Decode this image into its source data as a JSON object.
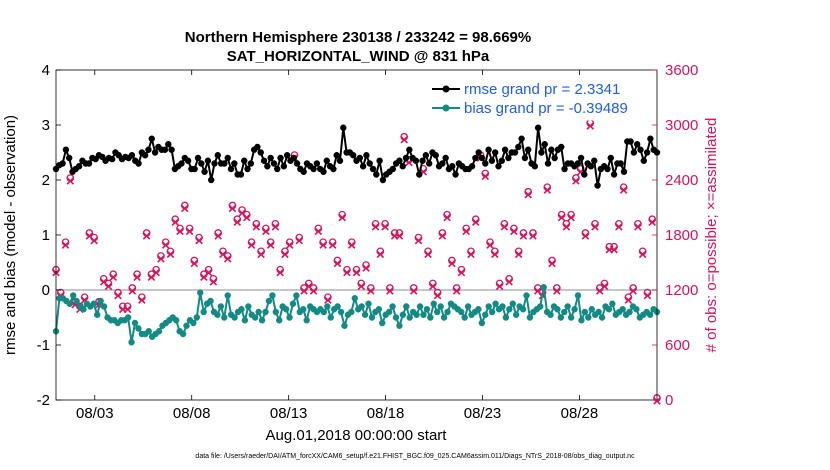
{
  "chart_data": {
    "type": "line",
    "title": "Northern Hemisphere 230138 / 233242 = 98.669%",
    "subtitle": "SAT_HORIZONTAL_WIND @ 831 hPa",
    "xlabel": "Aug.01,2018 00:00:00 start",
    "ylabel_left": "rmse and bias (model - observation)",
    "ylabel_right": "# of obs: o=possible; ×=assimilated",
    "x_ticks": [
      "08/03",
      "08/08",
      "08/13",
      "08/18",
      "08/23",
      "08/28"
    ],
    "x_tick_days": [
      3,
      8,
      13,
      18,
      23,
      28
    ],
    "xlim_days": [
      1.0,
      32.0
    ],
    "ylim_left": [
      -2,
      4
    ],
    "yticks_left": [
      "-2",
      "-1",
      "0",
      "1",
      "2",
      "3",
      "4"
    ],
    "ylim_right": [
      0,
      3600
    ],
    "yticks_right": [
      "0",
      "600",
      "1200",
      "1800",
      "2400",
      "3000",
      "3600"
    ],
    "colors": {
      "rmse": "#000000",
      "bias": "#138a84",
      "obs": "#d6145c",
      "zero_line": "#b4b4b4",
      "legend_text": "#1f5fe0"
    },
    "legend_position": "top-right",
    "series": [
      {
        "name": "rmse grand pr = 2.3341",
        "color": "#000000",
        "values": [
          2.2,
          2.27,
          2.3,
          2.55,
          2.4,
          2.15,
          2.2,
          2.25,
          2.35,
          2.3,
          2.3,
          2.4,
          2.38,
          2.45,
          2.42,
          2.35,
          2.4,
          2.38,
          2.5,
          2.45,
          2.38,
          2.42,
          2.4,
          2.45,
          2.35,
          2.3,
          2.5,
          2.45,
          2.55,
          2.75,
          2.5,
          2.6,
          2.55,
          2.55,
          2.65,
          2.55,
          2.2,
          2.25,
          2.3,
          2.4,
          2.35,
          2.2,
          2.2,
          2.4,
          2.3,
          2.15,
          2.35,
          2.0,
          2.3,
          2.45,
          2.3,
          2.3,
          2.4,
          2.2,
          2.3,
          2.1,
          2.1,
          2.35,
          2.2,
          2.3,
          2.55,
          2.6,
          2.5,
          2.35,
          2.25,
          2.4,
          2.3,
          2.2,
          2.4,
          2.25,
          2.45,
          2.35,
          2.4,
          2.3,
          2.2,
          2.15,
          2.3,
          2.25,
          2.2,
          2.3,
          2.2,
          2.15,
          2.35,
          2.25,
          2.2,
          2.45,
          2.35,
          2.95,
          2.5,
          2.5,
          2.45,
          2.35,
          2.4,
          2.25,
          2.45,
          2.3,
          2.2,
          2.1,
          2.35,
          2.0,
          2.1,
          2.15,
          2.2,
          2.3,
          2.35,
          2.25,
          2.4,
          2.55,
          2.4,
          2.35,
          2.1,
          2.35,
          2.45,
          2.3,
          2.5,
          2.45,
          2.25,
          2.3,
          2.4,
          2.2,
          2.25,
          2.1,
          2.3,
          2.25,
          2.2,
          2.2,
          2.25,
          2.4,
          2.5,
          2.4,
          2.3,
          2.55,
          2.35,
          2.5,
          2.25,
          2.35,
          2.55,
          2.4,
          2.5,
          2.5,
          2.6,
          2.75,
          2.4,
          2.55,
          2.3,
          2.25,
          2.95,
          2.5,
          2.65,
          2.3,
          2.55,
          2.4,
          2.55,
          2.6,
          2.2,
          2.3,
          2.3,
          2.25,
          2.3,
          2.4,
          2.1,
          2.3,
          2.25,
          2.35,
          1.9,
          2.2,
          2.25,
          2.2,
          2.4,
          2.1,
          2.3,
          2.3,
          2.15,
          2.7,
          2.7,
          2.5,
          2.65,
          2.55,
          2.35,
          2.5,
          2.75,
          2.55,
          2.5
        ]
      },
      {
        "name": "bias grand pr = -0.39489",
        "color": "#138a84",
        "values": [
          -0.75,
          -0.15,
          -0.15,
          -0.2,
          -0.25,
          -0.1,
          -0.2,
          -0.3,
          -0.35,
          -0.25,
          -0.3,
          -0.25,
          -0.45,
          -0.2,
          -0.3,
          -0.5,
          -0.55,
          -0.55,
          -0.6,
          -0.55,
          -0.55,
          -0.5,
          -0.95,
          -0.6,
          -0.7,
          -0.8,
          -0.8,
          -0.75,
          -0.85,
          -0.8,
          -0.75,
          -0.65,
          -0.6,
          -0.55,
          -0.5,
          -0.55,
          -0.75,
          -0.8,
          -0.65,
          -0.55,
          -0.6,
          -0.5,
          -0.05,
          -0.4,
          -0.25,
          -0.2,
          -0.4,
          -0.45,
          -0.3,
          -0.5,
          -0.1,
          -0.45,
          -0.5,
          -0.4,
          -0.35,
          -0.55,
          -0.3,
          -0.45,
          -0.5,
          -0.4,
          -0.55,
          -0.4,
          -0.2,
          -0.1,
          -0.4,
          -0.55,
          -0.3,
          -0.35,
          -0.5,
          -0.25,
          -0.1,
          -0.4,
          -0.35,
          -0.55,
          -0.3,
          -0.35,
          -0.4,
          -0.35,
          -0.4,
          -0.3,
          -0.5,
          -0.35,
          -0.3,
          -0.4,
          -0.65,
          -0.45,
          -0.4,
          -0.15,
          -0.35,
          -0.3,
          -0.45,
          -0.25,
          -0.5,
          -0.4,
          -0.35,
          -0.6,
          -0.45,
          -0.4,
          -0.3,
          -0.5,
          -0.65,
          -0.45,
          -0.3,
          -0.5,
          -0.4,
          -0.45,
          -0.3,
          -0.45,
          -0.35,
          -0.5,
          -0.25,
          -0.4,
          -0.3,
          -0.5,
          -0.4,
          -0.25,
          -0.3,
          -0.35,
          -0.4,
          -0.5,
          -0.3,
          -0.45,
          -0.4,
          -0.35,
          -0.6,
          -0.45,
          -0.3,
          -0.4,
          -0.25,
          -0.35,
          -0.3,
          -0.5,
          -0.35,
          -0.25,
          -0.45,
          -0.3,
          -0.35,
          -0.1,
          -0.5,
          -0.4,
          -0.35,
          -0.3,
          0.05,
          -0.4,
          -0.45,
          -0.3,
          -0.35,
          -0.5,
          -0.4,
          -0.3,
          -0.5,
          -0.35,
          -0.1,
          -0.55,
          -0.4,
          -0.5,
          -0.35,
          -0.45,
          -0.4,
          -0.5,
          -0.3,
          -0.35,
          -0.25,
          -0.45,
          -0.4,
          -0.35,
          -0.45,
          -0.4,
          -0.3,
          -0.35,
          -0.5,
          -0.45,
          -0.4,
          -0.45,
          -0.35,
          -0.4
        ]
      }
    ],
    "obs_possible": [
      1400,
      1150,
      1700,
      2400,
      1050,
      1000,
      1100,
      1800,
      1750,
      1050,
      1300,
      1250,
      1350,
      1150,
      1000,
      1000,
      1200,
      1350,
      1100,
      1800,
      1350,
      1400,
      1550,
      1700,
      1600,
      1950,
      1850,
      2100,
      1850,
      1500,
      1750,
      1350,
      1400,
      1300,
      1800,
      1600,
      1550,
      2100,
      1950,
      2050,
      2000,
      1700,
      1900,
      1600,
      1850,
      1700,
      1900,
      1400,
      1600,
      1700,
      2650,
      1750,
      1200,
      1250,
      1200,
      1850,
      1700,
      1100,
      1700,
      1500,
      2000,
      1400,
      1700,
      1400,
      1250,
      1450,
      1200,
      1900,
      1600,
      1900,
      1200,
      1800,
      1800,
      2850,
      2600,
      1200,
      1750,
      2500,
      1600,
      1250,
      1150,
      1800,
      2000,
      1500,
      1200,
      1400,
      1850,
      1600,
      1950,
      2650,
      2450,
      1700,
      1600,
      1250,
      1900,
      1300,
      1850,
      1600,
      1800,
      2250,
      1800,
      1200,
      1150,
      2300,
      1500,
      1200,
      2000,
      1900,
      2000,
      2400,
      2500,
      1800,
      3000,
      1900,
      1200,
      1250,
      1650,
      1650,
      1900,
      2300,
      1100,
      1200,
      1900,
      1600,
      1150,
      1950,
      0
    ]
  },
  "footer": "data file: /Users/raeder/DAI/ATM_forcXX/CAM6_setup/f.e21.FHIST_BGC.f09_025.CAM6assim.011/Diags_NTrS_2018-08/obs_diag_output.nc"
}
